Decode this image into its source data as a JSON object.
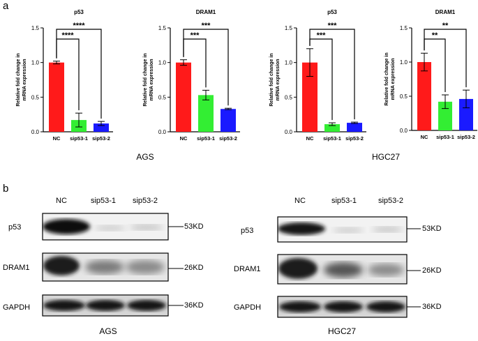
{
  "panel_a_label": "a",
  "panel_b_label": "b",
  "cell_lines": [
    "AGS",
    "HGC27"
  ],
  "chart_data": [
    {
      "type": "bar",
      "title": "p53",
      "cell_line": "AGS",
      "ylabel": "Relative fold change in mRNA expression",
      "categories": [
        "NC",
        "sip53-1",
        "sip53-2"
      ],
      "values": [
        1.0,
        0.17,
        0.12
      ],
      "errors": [
        0.02,
        0.1,
        0.03
      ],
      "colors": [
        "#ff1a1a",
        "#33ee33",
        "#1a1aff"
      ],
      "ylim": [
        0,
        1.5
      ],
      "yticks": [
        "0.0",
        "0.5",
        "1.0",
        "1.5"
      ],
      "significance": [
        "****",
        "****"
      ]
    },
    {
      "type": "bar",
      "title": "DRAM1",
      "cell_line": "AGS",
      "ylabel": "Relative fold change in mRNA expression",
      "categories": [
        "NC",
        "sip53-1",
        "sip53-2"
      ],
      "values": [
        1.0,
        0.53,
        0.33
      ],
      "errors": [
        0.04,
        0.07,
        0.01
      ],
      "colors": [
        "#ff1a1a",
        "#33ee33",
        "#1a1aff"
      ],
      "ylim": [
        0,
        1.5
      ],
      "yticks": [
        "0.0",
        "0.5",
        "1.0",
        "1.5"
      ],
      "significance": [
        "***",
        "***"
      ]
    },
    {
      "type": "bar",
      "title": "p53",
      "cell_line": "HGC27",
      "ylabel": "Relative fold change in mRNA expression",
      "categories": [
        "NC",
        "sip53-1",
        "sip53-2"
      ],
      "values": [
        1.0,
        0.11,
        0.13
      ],
      "errors": [
        0.2,
        0.02,
        0.01
      ],
      "colors": [
        "#ff1a1a",
        "#33ee33",
        "#1a1aff"
      ],
      "ylim": [
        0,
        1.5
      ],
      "yticks": [
        "0.0",
        "0.5",
        "1.0",
        "1.5"
      ],
      "significance": [
        "***",
        "***"
      ]
    },
    {
      "type": "bar",
      "title": "DRAM1",
      "cell_line": "HGC27",
      "ylabel": "Relative fold change in mRNA expression",
      "categories": [
        "NC",
        "sip53-1",
        "sip53-2"
      ],
      "values": [
        1.0,
        0.42,
        0.46
      ],
      "errors": [
        0.13,
        0.1,
        0.13
      ],
      "colors": [
        "#ff1a1a",
        "#33ee33",
        "#1a1aff"
      ],
      "ylim": [
        0,
        1.5
      ],
      "yticks": [
        "0.0",
        "0.5",
        "1.0",
        "1.5"
      ],
      "significance": [
        "**",
        "**"
      ]
    }
  ],
  "western_blot": {
    "lanes": [
      "NC",
      "sip53-1",
      "sip53-2"
    ],
    "rows": [
      {
        "protein": "p53",
        "size": "53KD"
      },
      {
        "protein": "DRAM1",
        "size": "26KD"
      },
      {
        "protein": "GAPDH",
        "size": "36KD"
      }
    ],
    "cell_lines": [
      "AGS",
      "HGC27"
    ]
  }
}
